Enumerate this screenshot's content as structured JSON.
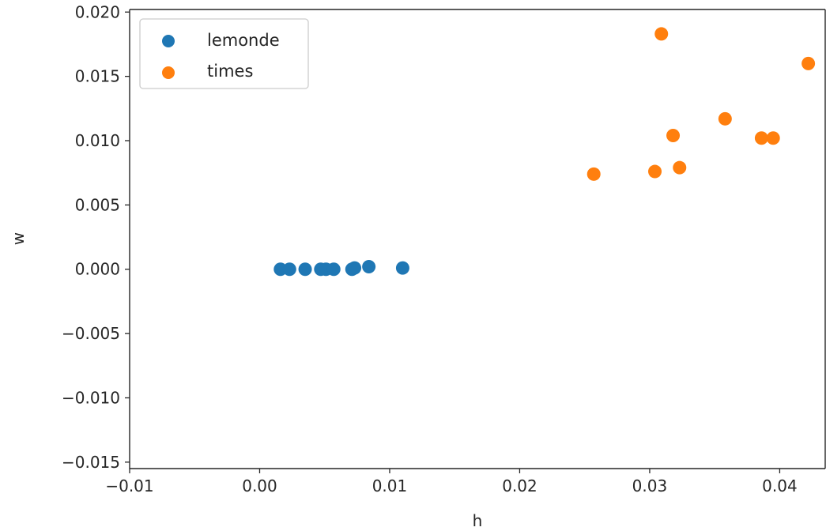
{
  "chart_data": {
    "type": "scatter",
    "title": "",
    "xlabel": "h",
    "ylabel": "w",
    "xlim": [
      -0.01,
      0.0435
    ],
    "ylim": [
      -0.0155,
      0.0202
    ],
    "grid": false,
    "legend_position": "upper-left",
    "x_ticks": [
      -0.01,
      0.0,
      0.01,
      0.02,
      0.03,
      0.04
    ],
    "x_tick_labels": [
      "−0.01",
      "0.00",
      "0.01",
      "0.02",
      "0.03",
      "0.04"
    ],
    "y_ticks": [
      -0.015,
      -0.01,
      -0.005,
      0.0,
      0.005,
      0.01,
      0.015,
      0.02
    ],
    "y_tick_labels": [
      "−0.015",
      "−0.010",
      "−0.005",
      "0.000",
      "0.005",
      "0.010",
      "0.015",
      "0.020"
    ],
    "series": [
      {
        "name": "lemonde",
        "color": "#1f77b4",
        "points": [
          [
            0.0016,
            0.0
          ],
          [
            0.0023,
            0.0
          ],
          [
            0.0035,
            0.0
          ],
          [
            0.0047,
            0.0
          ],
          [
            0.0051,
            0.0
          ],
          [
            0.0057,
            0.0
          ],
          [
            0.0071,
            0.0
          ],
          [
            0.0073,
            0.0001
          ],
          [
            0.0084,
            0.0002
          ],
          [
            0.011,
            0.0001
          ]
        ]
      },
      {
        "name": "times",
        "color": "#ff7f0e",
        "points": [
          [
            0.0257,
            0.0074
          ],
          [
            0.0304,
            0.0076
          ],
          [
            0.0309,
            0.0183
          ],
          [
            0.0318,
            0.0104
          ],
          [
            0.0323,
            0.0079
          ],
          [
            0.0358,
            0.0117
          ],
          [
            0.0386,
            0.0102
          ],
          [
            0.0395,
            0.0102
          ],
          [
            0.0422,
            0.016
          ]
        ]
      }
    ]
  }
}
